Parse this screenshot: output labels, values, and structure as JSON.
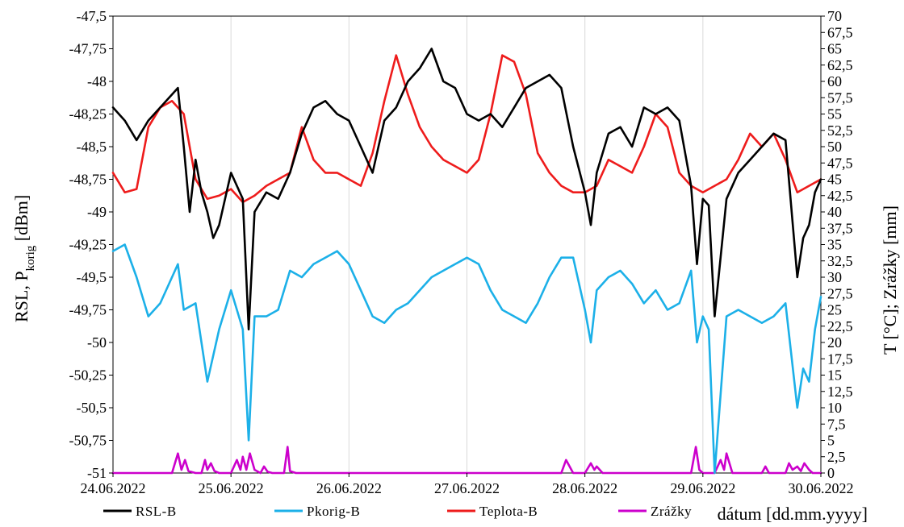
{
  "chart_data": {
    "type": "line",
    "x_axis": {
      "label": "dátum [dd.mm.yyyy]",
      "ticks": [
        "24.06.2022",
        "25.06.2022",
        "26.06.2022",
        "27.06.2022",
        "28.06.2022",
        "29.06.2022",
        "30.06.2022"
      ],
      "range_days": [
        0,
        6
      ]
    },
    "y_axis_left": {
      "label_main": "RSL, P",
      "label_sub": "korig",
      "label_unit": " [dBm]",
      "range": [
        -51,
        -47.5
      ],
      "ticks": [
        "-47,5",
        "-47,75",
        "-48",
        "-48,25",
        "-48,5",
        "-48,75",
        "-49",
        "-49,25",
        "-49,5",
        "-49,75",
        "-50",
        "-50,25",
        "-50,5",
        "-50,75",
        "-51"
      ],
      "tick_values": [
        -47.5,
        -47.75,
        -48,
        -48.25,
        -48.5,
        -48.75,
        -49,
        -49.25,
        -49.5,
        -49.75,
        -50,
        -50.25,
        -50.5,
        -50.75,
        -51
      ]
    },
    "y_axis_right": {
      "label": "T [°C]; Zrážky [mm]",
      "range": [
        0,
        70
      ],
      "ticks": [
        "70",
        "67,5",
        "65",
        "62,5",
        "60",
        "57,5",
        "55",
        "52,5",
        "50",
        "47,5",
        "45",
        "42,5",
        "40",
        "37,5",
        "35",
        "32,5",
        "30",
        "27,5",
        "25",
        "22,5",
        "20",
        "17,5",
        "15",
        "12,5",
        "10",
        "7,5",
        "5",
        "2,5",
        "0"
      ],
      "tick_values": [
        70,
        67.5,
        65,
        62.5,
        60,
        57.5,
        55,
        52.5,
        50,
        47.5,
        45,
        42.5,
        40,
        37.5,
        35,
        32.5,
        30,
        27.5,
        25,
        22.5,
        20,
        17.5,
        15,
        12.5,
        10,
        7.5,
        5,
        2.5,
        0
      ]
    },
    "grid": "vertical",
    "legend_position": "bottom",
    "series": [
      {
        "name": "RSL-B",
        "axis": "left",
        "color": "#000000",
        "x": [
          0,
          0.1,
          0.2,
          0.3,
          0.4,
          0.5,
          0.55,
          0.6,
          0.65,
          0.7,
          0.75,
          0.8,
          0.85,
          0.9,
          1.0,
          1.1,
          1.15,
          1.2,
          1.3,
          1.4,
          1.5,
          1.6,
          1.7,
          1.8,
          1.9,
          2.0,
          2.1,
          2.2,
          2.3,
          2.4,
          2.5,
          2.6,
          2.7,
          2.8,
          2.9,
          3.0,
          3.1,
          3.2,
          3.3,
          3.4,
          3.5,
          3.6,
          3.7,
          3.8,
          3.9,
          4.0,
          4.05,
          4.1,
          4.2,
          4.3,
          4.4,
          4.5,
          4.6,
          4.7,
          4.8,
          4.9,
          4.95,
          5.0,
          5.05,
          5.1,
          5.2,
          5.3,
          5.4,
          5.5,
          5.6,
          5.7,
          5.8,
          5.85,
          5.9,
          5.95,
          6.0
        ],
        "y": [
          -48.2,
          -48.3,
          -48.45,
          -48.3,
          -48.2,
          -48.1,
          -48.05,
          -48.5,
          -49.0,
          -48.6,
          -48.85,
          -49.0,
          -49.2,
          -49.1,
          -48.7,
          -48.9,
          -49.9,
          -49.0,
          -48.85,
          -48.9,
          -48.7,
          -48.4,
          -48.2,
          -48.15,
          -48.25,
          -48.3,
          -48.5,
          -48.7,
          -48.3,
          -48.2,
          -48.0,
          -47.9,
          -47.75,
          -48.0,
          -48.05,
          -48.25,
          -48.3,
          -48.25,
          -48.35,
          -48.2,
          -48.05,
          -48.0,
          -47.95,
          -48.05,
          -48.5,
          -48.85,
          -49.1,
          -48.7,
          -48.4,
          -48.35,
          -48.5,
          -48.2,
          -48.25,
          -48.2,
          -48.3,
          -48.8,
          -49.4,
          -48.9,
          -48.95,
          -49.8,
          -48.9,
          -48.7,
          -48.6,
          -48.5,
          -48.4,
          -48.45,
          -49.5,
          -49.2,
          -49.1,
          -48.85,
          -48.75
        ]
      },
      {
        "name": "Pkorig-B",
        "axis": "left",
        "color": "#1cb0e8",
        "x": [
          0,
          0.1,
          0.2,
          0.3,
          0.4,
          0.5,
          0.55,
          0.6,
          0.7,
          0.75,
          0.8,
          0.9,
          1.0,
          1.1,
          1.15,
          1.2,
          1.3,
          1.4,
          1.5,
          1.6,
          1.7,
          1.8,
          1.9,
          2.0,
          2.1,
          2.2,
          2.3,
          2.4,
          2.5,
          2.6,
          2.7,
          2.8,
          2.9,
          3.0,
          3.1,
          3.2,
          3.3,
          3.4,
          3.5,
          3.6,
          3.7,
          3.8,
          3.9,
          4.0,
          4.05,
          4.1,
          4.2,
          4.3,
          4.4,
          4.5,
          4.6,
          4.7,
          4.8,
          4.9,
          4.95,
          5.0,
          5.05,
          5.1,
          5.2,
          5.3,
          5.4,
          5.5,
          5.6,
          5.7,
          5.8,
          5.85,
          5.9,
          5.95,
          6.0
        ],
        "y": [
          -49.3,
          -49.25,
          -49.5,
          -49.8,
          -49.7,
          -49.5,
          -49.4,
          -49.75,
          -49.7,
          -50.0,
          -50.3,
          -49.9,
          -49.6,
          -49.9,
          -50.75,
          -49.8,
          -49.8,
          -49.75,
          -49.45,
          -49.5,
          -49.4,
          -49.35,
          -49.3,
          -49.4,
          -49.6,
          -49.8,
          -49.85,
          -49.75,
          -49.7,
          -49.6,
          -49.5,
          -49.45,
          -49.4,
          -49.35,
          -49.4,
          -49.6,
          -49.75,
          -49.8,
          -49.85,
          -49.7,
          -49.5,
          -49.35,
          -49.35,
          -49.75,
          -50.0,
          -49.6,
          -49.5,
          -49.45,
          -49.55,
          -49.7,
          -49.6,
          -49.75,
          -49.7,
          -49.45,
          -50.0,
          -49.8,
          -49.9,
          -51.0,
          -49.8,
          -49.75,
          -49.8,
          -49.85,
          -49.8,
          -49.7,
          -50.5,
          -50.2,
          -50.3,
          -49.9,
          -49.65
        ]
      },
      {
        "name": "Teplota-B",
        "axis": "right",
        "color": "#ee1c1c",
        "x": [
          0,
          0.1,
          0.2,
          0.3,
          0.4,
          0.5,
          0.6,
          0.7,
          0.8,
          0.9,
          1.0,
          1.1,
          1.2,
          1.3,
          1.4,
          1.5,
          1.6,
          1.7,
          1.8,
          1.9,
          2.0,
          2.1,
          2.2,
          2.3,
          2.4,
          2.5,
          2.6,
          2.7,
          2.8,
          2.9,
          3.0,
          3.1,
          3.2,
          3.3,
          3.4,
          3.5,
          3.6,
          3.7,
          3.8,
          3.9,
          4.0,
          4.1,
          4.2,
          4.3,
          4.4,
          4.5,
          4.6,
          4.7,
          4.8,
          4.9,
          5.0,
          5.1,
          5.2,
          5.3,
          5.4,
          5.5,
          5.6,
          5.7,
          5.8,
          5.9,
          6.0
        ],
        "y": [
          46,
          43,
          43.5,
          53,
          56,
          57,
          55,
          45,
          42,
          42.5,
          43.5,
          41.5,
          42.5,
          44,
          45,
          46,
          53,
          48,
          46,
          46,
          45,
          44,
          49,
          57,
          64,
          58,
          53,
          50,
          48,
          47,
          46,
          48,
          55,
          64,
          63,
          58,
          49,
          46,
          44,
          43,
          43,
          44,
          48,
          47,
          46,
          50,
          55,
          53,
          46,
          44,
          43,
          44,
          45,
          48,
          52,
          50,
          52,
          48,
          43,
          44,
          45
        ]
      },
      {
        "name": "Zrážky",
        "axis": "right",
        "color": "#cc00cc",
        "x": [
          0,
          0.5,
          0.55,
          0.58,
          0.61,
          0.64,
          0.7,
          0.75,
          0.78,
          0.8,
          0.83,
          0.86,
          0.9,
          1.0,
          1.05,
          1.08,
          1.1,
          1.13,
          1.16,
          1.2,
          1.25,
          1.28,
          1.31,
          1.35,
          1.45,
          1.48,
          1.5,
          1.55,
          2.0,
          3.0,
          3.8,
          3.84,
          3.87,
          3.9,
          3.93,
          4.0,
          4.05,
          4.08,
          4.1,
          4.15,
          4.9,
          4.94,
          4.97,
          5.0,
          5.1,
          5.15,
          5.18,
          5.2,
          5.25,
          5.5,
          5.53,
          5.56,
          5.7,
          5.73,
          5.76,
          5.8,
          5.83,
          5.86,
          5.9,
          5.93,
          5.96,
          6.0
        ],
        "y": [
          0,
          0,
          3,
          0.5,
          2,
          0.3,
          0,
          0,
          2,
          0.5,
          1.5,
          0.3,
          0,
          0,
          2,
          0.5,
          2.5,
          0.5,
          3,
          0.5,
          0,
          1,
          0.2,
          0,
          0,
          4,
          0.3,
          0,
          0,
          0,
          0,
          2,
          1,
          0,
          0,
          0,
          1.5,
          0.5,
          1,
          0,
          0,
          4,
          0.5,
          0,
          0,
          2,
          0.5,
          3,
          0,
          0,
          1,
          0,
          0,
          1.5,
          0.5,
          1,
          0.3,
          1.5,
          0.5,
          0,
          0,
          0
        ]
      }
    ]
  }
}
